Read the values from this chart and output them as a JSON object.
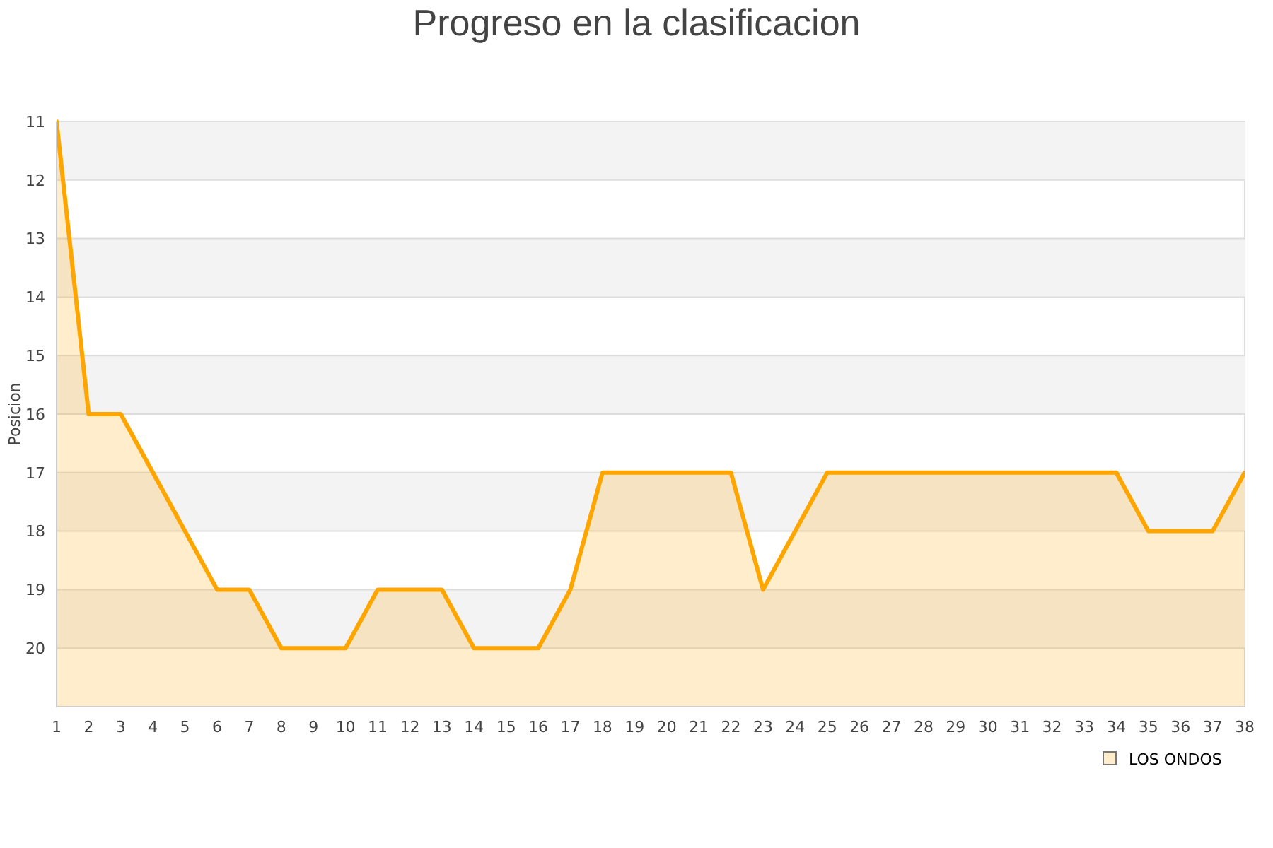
{
  "chart_data": {
    "type": "area",
    "title": "Progreso en la clasificacion",
    "ylabel": "Posicion",
    "x": [
      1,
      2,
      3,
      4,
      5,
      6,
      7,
      8,
      9,
      10,
      11,
      12,
      13,
      14,
      15,
      16,
      17,
      18,
      19,
      20,
      21,
      22,
      23,
      24,
      25,
      26,
      27,
      28,
      29,
      30,
      31,
      32,
      33,
      34,
      35,
      36,
      37,
      38
    ],
    "series": [
      {
        "name": "LOS ONDOS",
        "color": "#ffa500",
        "values": [
          11,
          16,
          16,
          17,
          18,
          19,
          19,
          20,
          20,
          20,
          19,
          19,
          19,
          20,
          20,
          20,
          19,
          17,
          17,
          17,
          17,
          17,
          19,
          18,
          17,
          17,
          17,
          17,
          17,
          17,
          17,
          17,
          17,
          17,
          18,
          18,
          18,
          17
        ]
      }
    ],
    "xlim": [
      1,
      38
    ],
    "xticks": [
      1,
      2,
      3,
      4,
      5,
      6,
      7,
      8,
      9,
      10,
      11,
      12,
      13,
      14,
      15,
      16,
      17,
      18,
      19,
      20,
      21,
      22,
      23,
      24,
      25,
      26,
      27,
      28,
      29,
      30,
      31,
      32,
      33,
      34,
      35,
      36,
      37,
      38
    ],
    "ylim": [
      21,
      11
    ],
    "yticks": [
      11,
      12,
      13,
      14,
      15,
      16,
      17,
      18,
      19,
      20
    ],
    "grid": "y",
    "legend": "bottom right"
  }
}
